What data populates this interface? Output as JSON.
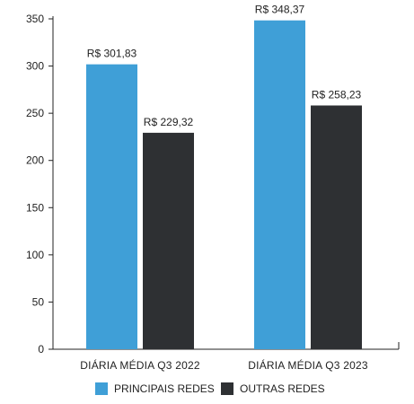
{
  "chart_data": {
    "type": "bar",
    "categories": [
      "DIÁRIA MÉDIA Q3 2022",
      "DIÁRIA MÉDIA Q3 2023"
    ],
    "series": [
      {
        "name": "PRINCIPAIS REDES",
        "color": "#3f9fd7",
        "values": [
          301.83,
          348.37
        ],
        "labels": [
          "R$ 301,83",
          "R$ 348,37"
        ]
      },
      {
        "name": "OUTRAS REDES",
        "color": "#2e3033",
        "values": [
          229.32,
          258.23
        ],
        "labels": [
          "R$ 229,32",
          "R$ 258,23"
        ]
      }
    ],
    "ylim": [
      0,
      350
    ],
    "yticks": [
      0,
      50,
      100,
      150,
      200,
      250,
      300,
      350
    ],
    "ytick_labels": [
      "0",
      "50",
      "100",
      "150",
      "200",
      "250",
      "300",
      "350"
    ],
    "grid": false,
    "legend": "bottom",
    "title": "",
    "xlabel": "",
    "ylabel": ""
  }
}
